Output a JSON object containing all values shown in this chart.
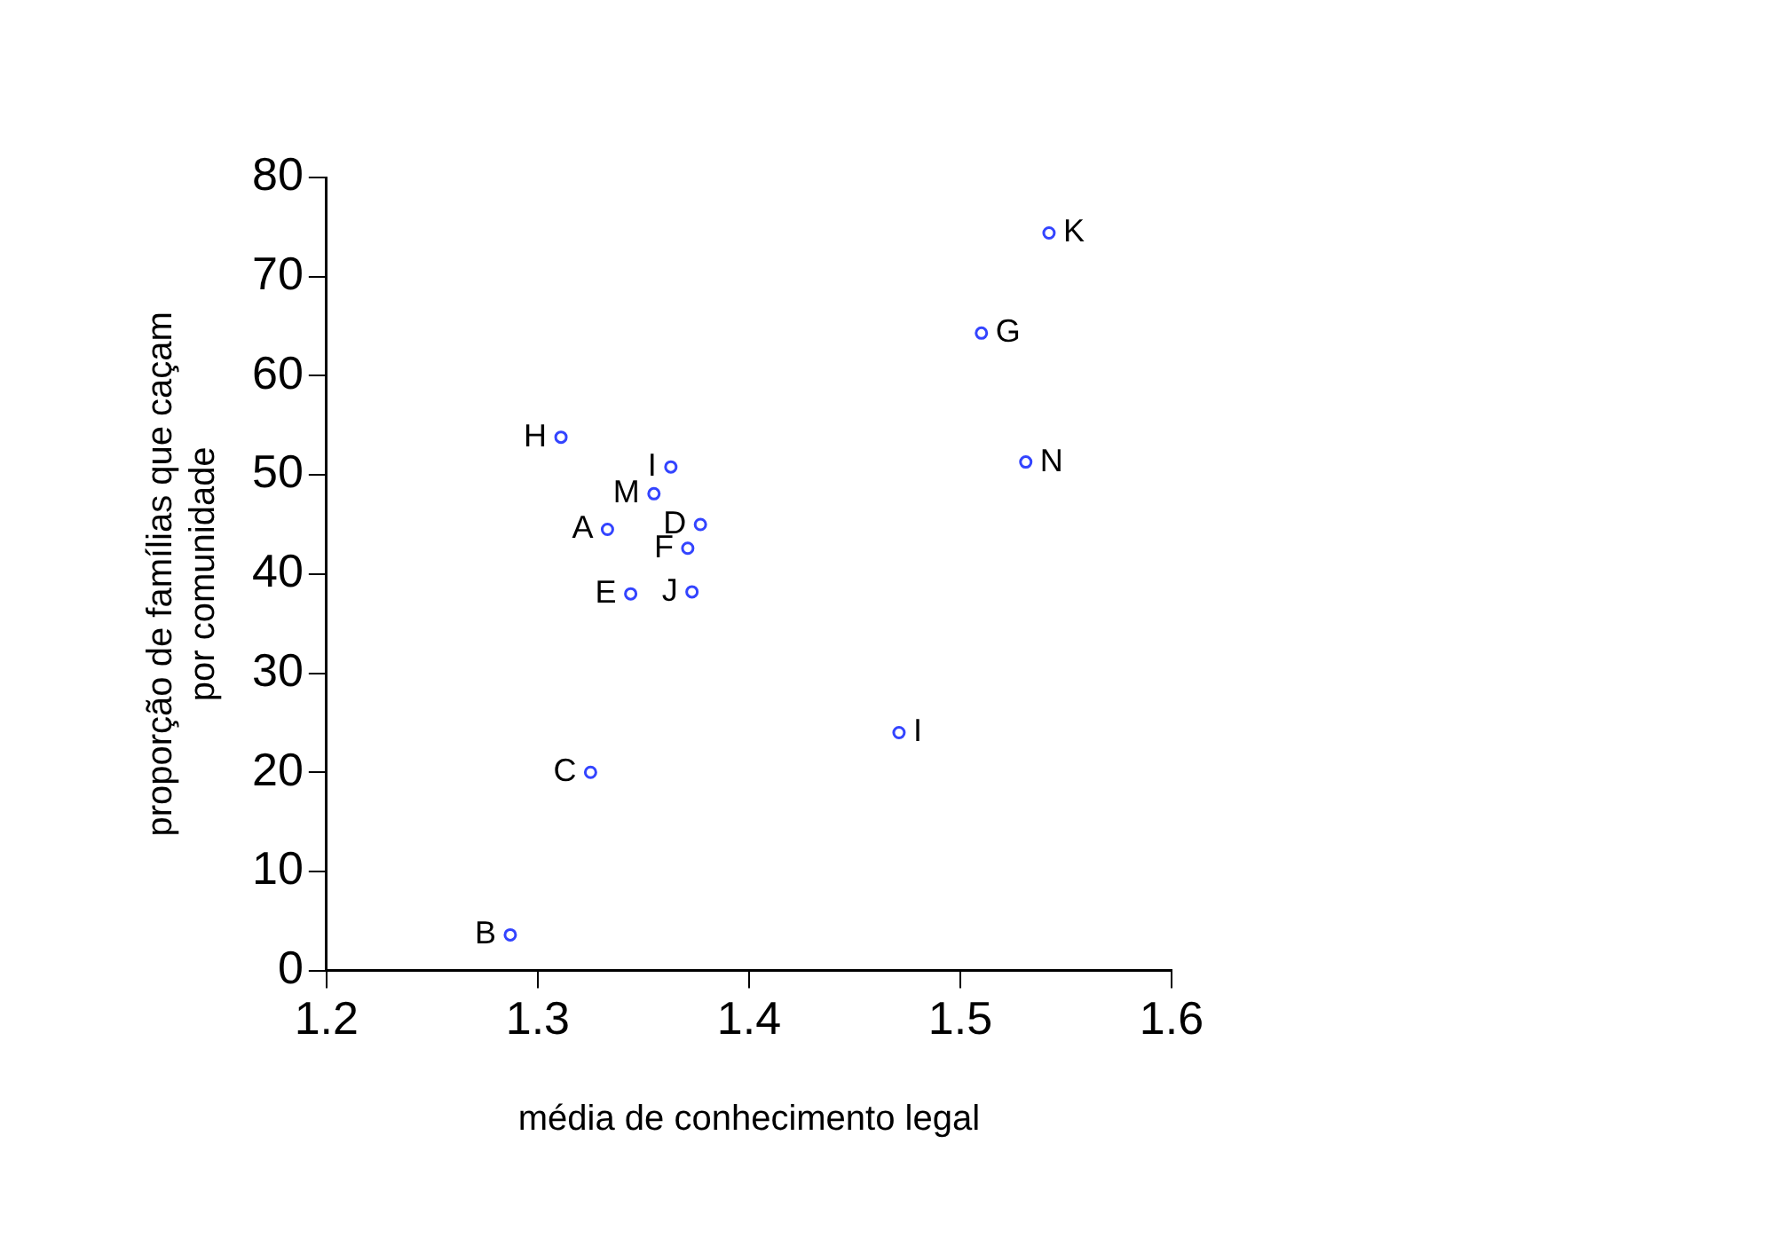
{
  "chart_data": {
    "type": "scatter",
    "xlabel": "média de conhecimento legal",
    "ylabel": "proporção de famílias que caçam\npor comunidade",
    "x": [
      1.311,
      1.363,
      1.355,
      1.333,
      1.377,
      1.371,
      1.344,
      1.373,
      1.542,
      1.51,
      1.531,
      1.471,
      1.325,
      1.287
    ],
    "series": [
      {
        "color": "#3344ff",
        "values": [
          53.8,
          50.8,
          48.1,
          44.5,
          45.0,
          42.6,
          38.0,
          38.2,
          74.4,
          64.3,
          51.3,
          24.0,
          20.0,
          3.6
        ]
      }
    ],
    "annotations": [
      {
        "text": "H",
        "x": 1.311,
        "y": 53.8
      },
      {
        "text": "I",
        "x": 1.363,
        "y": 50.8
      },
      {
        "text": "M",
        "x": 1.355,
        "y": 48.1
      },
      {
        "text": "A",
        "x": 1.333,
        "y": 44.5
      },
      {
        "text": "D",
        "x": 1.377,
        "y": 45.0
      },
      {
        "text": "F",
        "x": 1.371,
        "y": 42.6
      },
      {
        "text": "E",
        "x": 1.344,
        "y": 38.0
      },
      {
        "text": "J",
        "x": 1.373,
        "y": 38.2
      },
      {
        "text": "K",
        "x": 1.542,
        "y": 74.4
      },
      {
        "text": "G",
        "x": 1.51,
        "y": 64.3
      },
      {
        "text": "N",
        "x": 1.531,
        "y": 51.3
      },
      {
        "text": "I",
        "x": 1.471,
        "y": 24.0
      },
      {
        "text": "C",
        "x": 1.325,
        "y": 20.0
      },
      {
        "text": "B",
        "x": 1.287,
        "y": 3.6
      }
    ],
    "xlim": [
      1.2,
      1.6
    ],
    "xticks": [
      1.2,
      1.3,
      1.4,
      1.5,
      1.6
    ],
    "ylim": [
      0,
      80
    ],
    "yticks": [
      0,
      10,
      20,
      30,
      40,
      50,
      60,
      70,
      80
    ],
    "grid": false,
    "legend": false,
    "marker": "circle"
  }
}
